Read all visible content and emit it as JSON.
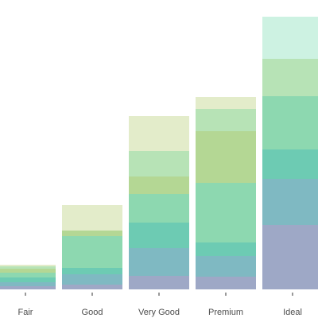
{
  "chart_data": {
    "type": "stacked_bar",
    "categories": [
      "Fair",
      "Good",
      "Very Good",
      "Premium",
      "Ideal"
    ],
    "ylim": [
      0,
      350
    ],
    "series": [
      {
        "color": "#9ea8c6",
        "values": [
          4,
          6,
          17,
          16,
          81
        ]
      },
      {
        "color": "#7fb9c2",
        "values": [
          5,
          13,
          35,
          26,
          58
        ]
      },
      {
        "color": "#6dcbb3",
        "values": [
          6,
          8,
          32,
          17,
          37
        ]
      },
      {
        "color": "#8dd8b0",
        "values": [
          6,
          40,
          36,
          75,
          67
        ]
      },
      {
        "color": "#b4d794",
        "values": [
          5,
          7,
          22,
          65,
          0
        ]
      },
      {
        "color": "#b7e3b6",
        "values": [
          3,
          0,
          32,
          28,
          47
        ]
      },
      {
        "color": "#e3ecca",
        "values": [
          2,
          32,
          44,
          15,
          0
        ]
      },
      {
        "color": "#cdf2e2",
        "values": [
          0,
          0,
          0,
          0,
          53
        ]
      }
    ]
  }
}
